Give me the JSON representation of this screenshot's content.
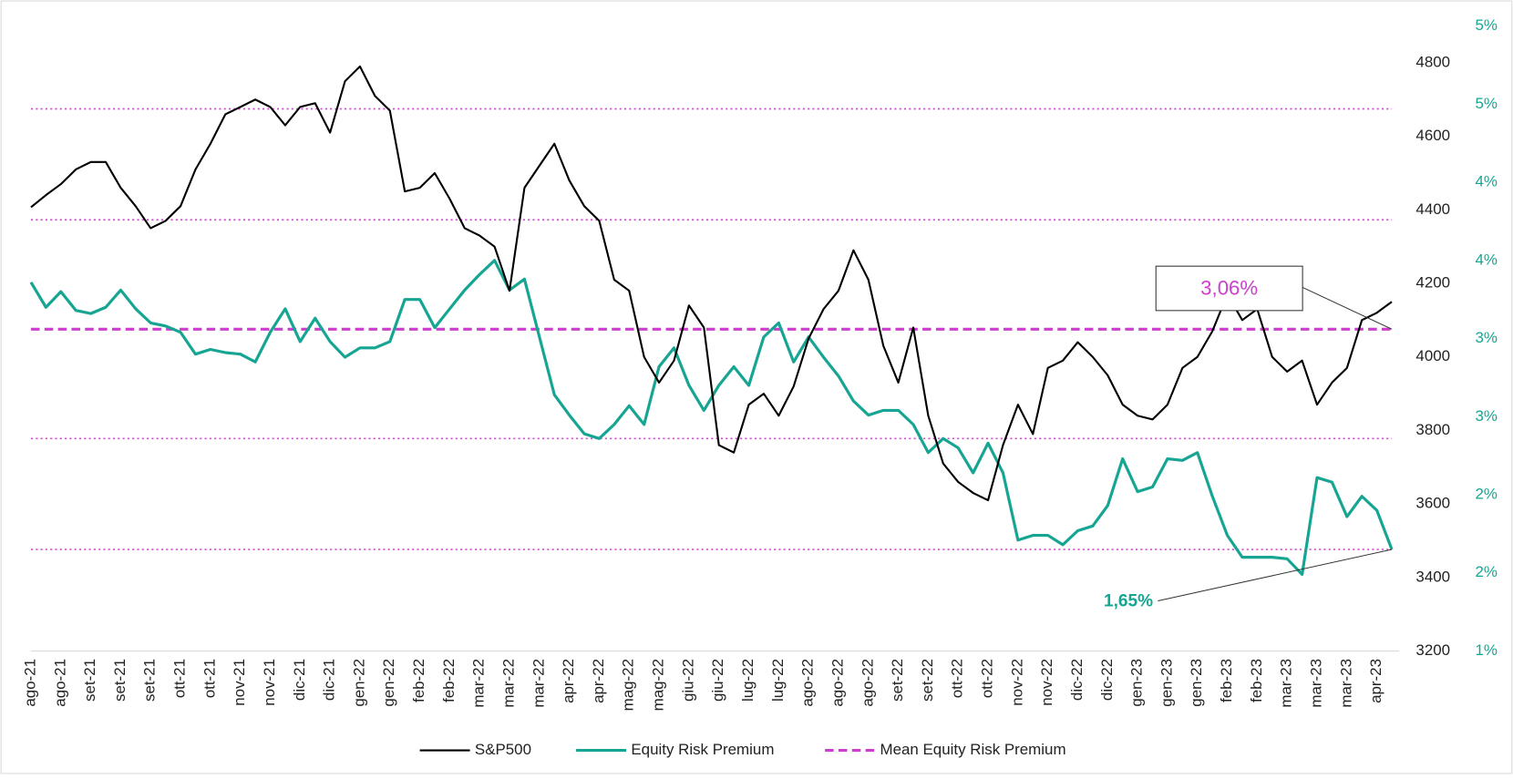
{
  "chart_data": {
    "type": "line",
    "categories": [
      "ago-21",
      null,
      "ago-21",
      null,
      "set-21",
      null,
      "set-21",
      null,
      "set-21",
      null,
      "ott-21",
      null,
      "ott-21",
      null,
      "nov-21",
      null,
      "nov-21",
      null,
      "dic-21",
      null,
      "dic-21",
      null,
      "gen-22",
      null,
      "gen-22",
      null,
      "feb-22",
      null,
      "feb-22",
      null,
      "mar-22",
      null,
      "mar-22",
      null,
      "mar-22",
      null,
      "apr-22",
      null,
      "apr-22",
      null,
      "mag-22",
      null,
      "mag-22",
      null,
      "giu-22",
      null,
      "giu-22",
      null,
      "lug-22",
      null,
      "lug-22",
      null,
      "ago-22",
      null,
      "ago-22",
      null,
      "ago-22",
      null,
      "set-22",
      null,
      "set-22",
      null,
      "ott-22",
      null,
      "ott-22",
      null,
      "nov-22",
      null,
      "nov-22",
      null,
      "dic-22",
      null,
      "dic-22",
      null,
      "gen-23",
      null,
      "gen-23",
      null,
      "gen-23",
      null,
      "feb-23",
      null,
      "feb-23",
      null,
      "mar-23",
      null,
      "mar-23",
      null,
      "mar-23",
      null,
      "apr-23",
      null
    ],
    "series": [
      {
        "name": "S&P500",
        "color": "#000000",
        "axis": "y",
        "style": "solid",
        "values": [
          4407,
          4440,
          4470,
          4510,
          4530,
          4530,
          4460,
          4410,
          4350,
          4370,
          4410,
          4510,
          4580,
          4660,
          4680,
          4700,
          4680,
          4630,
          4680,
          4690,
          4610,
          4750,
          4790,
          4710,
          4670,
          4450,
          4460,
          4500,
          4430,
          4350,
          4330,
          4300,
          4180,
          4460,
          4520,
          4580,
          4480,
          4410,
          4370,
          4210,
          4180,
          4000,
          3930,
          3990,
          4140,
          4080,
          3760,
          3740,
          3870,
          3900,
          3840,
          3920,
          4050,
          4130,
          4180,
          4290,
          4210,
          4030,
          3930,
          4080,
          3840,
          3710,
          3660,
          3630,
          3610,
          3760,
          3870,
          3790,
          3970,
          3990,
          4040,
          4000,
          3950,
          3870,
          3840,
          3830,
          3870,
          3970,
          4000,
          4070,
          4170,
          4100,
          4130,
          4000,
          3960,
          3990,
          3870,
          3930,
          3970,
          4100,
          4120,
          4150
        ]
      },
      {
        "name": "Equity Risk Premium",
        "color": "#17a593",
        "axis": "y2",
        "style": "solid",
        "values": [
          3.36,
          3.2,
          3.3,
          3.18,
          3.16,
          3.2,
          3.31,
          3.19,
          3.1,
          3.08,
          3.04,
          2.9,
          2.93,
          2.91,
          2.9,
          2.85,
          3.04,
          3.19,
          2.98,
          3.13,
          2.98,
          2.88,
          2.94,
          2.94,
          2.98,
          3.25,
          3.25,
          3.07,
          3.19,
          3.31,
          3.41,
          3.5,
          3.31,
          3.38,
          3.01,
          2.64,
          2.51,
          2.39,
          2.36,
          2.45,
          2.57,
          2.45,
          2.82,
          2.94,
          2.7,
          2.54,
          2.7,
          2.82,
          2.7,
          3.01,
          3.1,
          2.85,
          3.01,
          2.88,
          2.76,
          2.6,
          2.51,
          2.54,
          2.54,
          2.45,
          2.27,
          2.36,
          2.3,
          2.14,
          2.33,
          2.14,
          1.71,
          1.74,
          1.74,
          1.68,
          1.77,
          1.8,
          1.93,
          2.23,
          2.02,
          2.05,
          2.23,
          2.22,
          2.27,
          1.99,
          1.74,
          1.6,
          1.6,
          1.6,
          1.59,
          1.49,
          2.11,
          2.08,
          1.86,
          1.99,
          1.9,
          1.65
        ]
      },
      {
        "name": "Mean Equity Risk Premium",
        "color": "#cc3fcc",
        "axis": "y2",
        "style": "dashed",
        "values": [
          3.06,
          3.06,
          3.06,
          3.06,
          3.06,
          3.06,
          3.06,
          3.06,
          3.06,
          3.06,
          3.06,
          3.06,
          3.06,
          3.06,
          3.06,
          3.06,
          3.06,
          3.06,
          3.06,
          3.06,
          3.06,
          3.06,
          3.06,
          3.06,
          3.06,
          3.06,
          3.06,
          3.06,
          3.06,
          3.06,
          3.06,
          3.06,
          3.06,
          3.06,
          3.06,
          3.06,
          3.06,
          3.06,
          3.06,
          3.06,
          3.06,
          3.06,
          3.06,
          3.06,
          3.06,
          3.06,
          3.06,
          3.06,
          3.06,
          3.06,
          3.06,
          3.06,
          3.06,
          3.06,
          3.06,
          3.06,
          3.06,
          3.06,
          3.06,
          3.06,
          3.06,
          3.06,
          3.06,
          3.06,
          3.06,
          3.06,
          3.06,
          3.06,
          3.06,
          3.06,
          3.06,
          3.06,
          3.06,
          3.06,
          3.06,
          3.06,
          3.06,
          3.06,
          3.06,
          3.06,
          3.06,
          3.06,
          3.06,
          3.06,
          3.06,
          3.06,
          3.06,
          3.06,
          3.06,
          3.06,
          3.06,
          3.06
        ]
      }
    ],
    "ylim": [
      3200,
      4900
    ],
    "yticks": [
      3200,
      3400,
      3600,
      3800,
      4000,
      4200,
      4400,
      4600,
      4800
    ],
    "y2lim": [
      1,
      5
    ],
    "y2ticks": [
      {
        "value": 1,
        "label": "1%"
      },
      {
        "value": 1.5,
        "label": "2%"
      },
      {
        "value": 2,
        "label": "2%"
      },
      {
        "value": 2.5,
        "label": "3%"
      },
      {
        "value": 3,
        "label": "3%"
      },
      {
        "value": 3.5,
        "label": "4%"
      },
      {
        "value": 4,
        "label": "4%"
      },
      {
        "value": 4.5,
        "label": "5%"
      },
      {
        "value": 5,
        "label": "5%"
      }
    ],
    "y2_color": "#17a593",
    "reference_lines": {
      "axis": "y2",
      "color": "#d04fd0",
      "style": "dotted",
      "values": [
        4.47,
        3.76,
        2.36,
        1.65
      ]
    },
    "annotations": [
      {
        "label": "3,06%",
        "value": 3.06,
        "color": "#cc3fcc"
      },
      {
        "label": "1,65%",
        "value": 1.65,
        "color": "#17a593"
      }
    ],
    "grid": false,
    "legend": "bottom"
  }
}
